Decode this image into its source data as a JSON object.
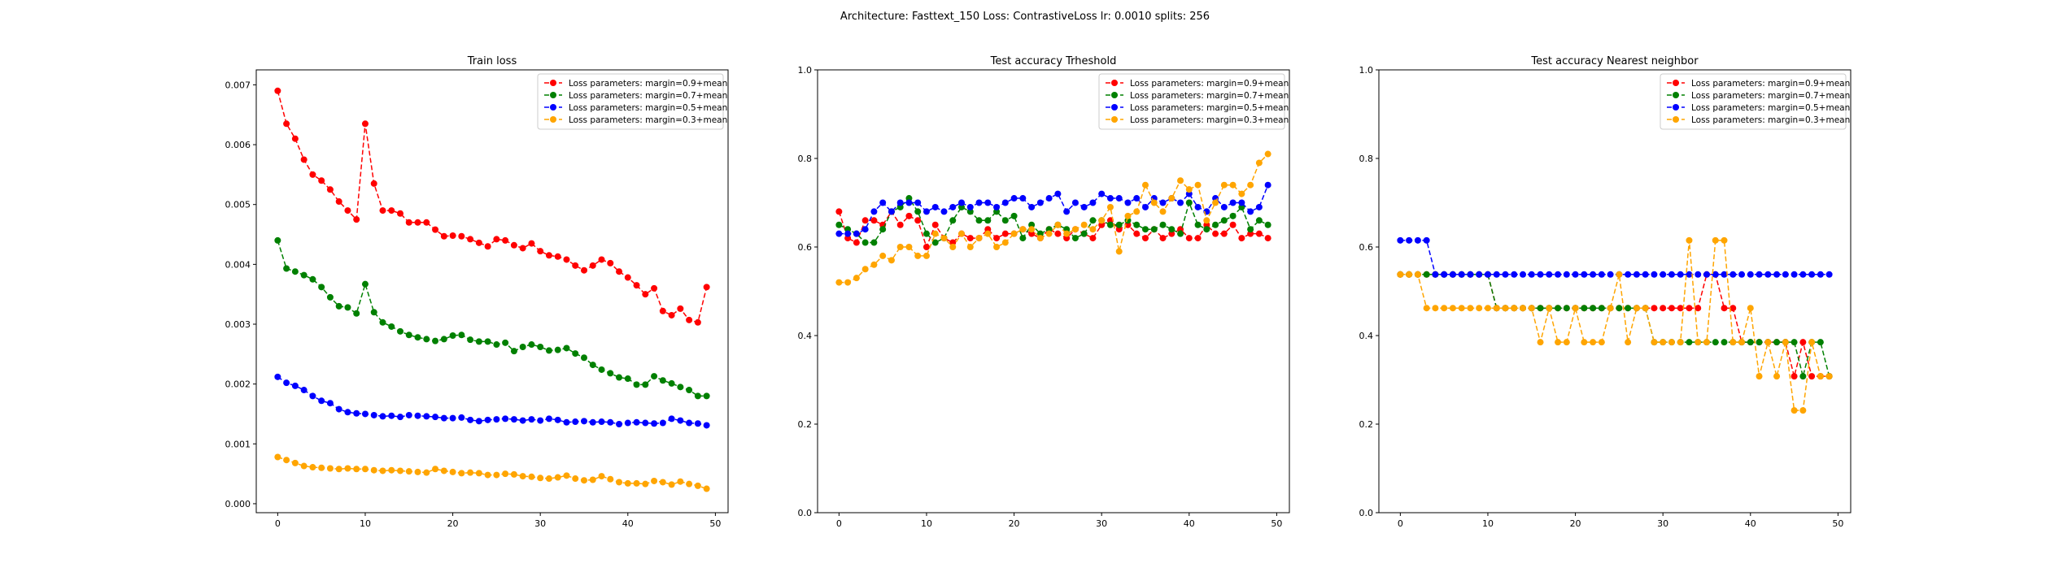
{
  "figure": {
    "suptitle": "Architecture: Fasttext_150 Loss: ContrastiveLoss lr: 0.0010 splits: 256"
  },
  "colors": {
    "margin_0_9": "#ff0000",
    "margin_0_7": "#008000",
    "margin_0_5": "#0000ff",
    "margin_0_3": "#ffa500"
  },
  "chart_data": [
    {
      "type": "line",
      "title": "Train loss",
      "xlabel": "",
      "ylabel": "",
      "xlim": [
        -2.45,
        51.45
      ],
      "ylim": [
        -0.00015,
        0.00725
      ],
      "xticks": [
        0,
        10,
        20,
        30,
        40,
        50
      ],
      "xtick_labels": [
        "0",
        "10",
        "20",
        "30",
        "40",
        "50"
      ],
      "yticks": [
        0,
        0.001,
        0.002,
        0.003,
        0.004,
        0.005,
        0.006,
        0.007
      ],
      "ytick_labels": [
        "0.000",
        "0.001",
        "0.002",
        "0.003",
        "0.004",
        "0.005",
        "0.006",
        "0.007"
      ],
      "legend_position": "top-right",
      "line_style": "dashed",
      "marker": "circle",
      "x": [
        0,
        1,
        2,
        3,
        4,
        5,
        6,
        7,
        8,
        9,
        10,
        11,
        12,
        13,
        14,
        15,
        16,
        17,
        18,
        19,
        20,
        21,
        22,
        23,
        24,
        25,
        26,
        27,
        28,
        29,
        30,
        31,
        32,
        33,
        34,
        35,
        36,
        37,
        38,
        39,
        40,
        41,
        42,
        43,
        44,
        45,
        46,
        47,
        48,
        49
      ],
      "series": [
        {
          "name": "Loss parameters: margin=0.9+mean",
          "color": "#ff0000",
          "values": [
            0.0069,
            0.00635,
            0.0061,
            0.00575,
            0.0055,
            0.0054,
            0.00525,
            0.00505,
            0.0049,
            0.00475,
            0.00635,
            0.00535,
            0.0049,
            0.0049,
            0.00485,
            0.0047,
            0.0047,
            0.0047,
            0.00458,
            0.00447,
            0.00448,
            0.00447,
            0.00442,
            0.00436,
            0.0043,
            0.00442,
            0.0044,
            0.00432,
            0.00427,
            0.00435,
            0.00422,
            0.00415,
            0.00413,
            0.00408,
            0.00398,
            0.0039,
            0.00398,
            0.00408,
            0.00402,
            0.00388,
            0.00378,
            0.00365,
            0.0035,
            0.0036,
            0.00322,
            0.00315,
            0.00326,
            0.00307,
            0.00303,
            0.00362
          ]
        },
        {
          "name": "Loss parameters: margin=0.7+mean",
          "color": "#008000",
          "values": [
            0.0044,
            0.00393,
            0.00388,
            0.00382,
            0.00375,
            0.00362,
            0.00345,
            0.0033,
            0.00328,
            0.00318,
            0.00367,
            0.0032,
            0.00303,
            0.00296,
            0.00288,
            0.00282,
            0.00278,
            0.00275,
            0.00272,
            0.00275,
            0.00281,
            0.00282,
            0.00274,
            0.00271,
            0.00271,
            0.00266,
            0.00269,
            0.00255,
            0.00262,
            0.00266,
            0.00262,
            0.00256,
            0.00257,
            0.0026,
            0.00251,
            0.00244,
            0.00232,
            0.00224,
            0.00218,
            0.00211,
            0.00209,
            0.00199,
            0.00199,
            0.00213,
            0.00206,
            0.00201,
            0.00195,
            0.0019,
            0.0018,
            0.0018
          ]
        },
        {
          "name": "Loss parameters: margin=0.5+mean",
          "color": "#0000ff",
          "values": [
            0.00212,
            0.00202,
            0.00197,
            0.0019,
            0.0018,
            0.00172,
            0.00168,
            0.00158,
            0.00153,
            0.00151,
            0.0015,
            0.00148,
            0.00146,
            0.00147,
            0.00145,
            0.00148,
            0.00147,
            0.00146,
            0.00145,
            0.00143,
            0.00143,
            0.00144,
            0.0014,
            0.00138,
            0.0014,
            0.00141,
            0.00142,
            0.00141,
            0.00139,
            0.00141,
            0.00139,
            0.00142,
            0.0014,
            0.00136,
            0.00137,
            0.00138,
            0.00136,
            0.00137,
            0.00136,
            0.00133,
            0.00135,
            0.00136,
            0.00135,
            0.00134,
            0.00135,
            0.00142,
            0.00139,
            0.00135,
            0.00134,
            0.00131
          ]
        },
        {
          "name": "Loss parameters: margin=0.3+mean",
          "color": "#ffa500",
          "values": [
            0.00078,
            0.00073,
            0.00068,
            0.00063,
            0.00061,
            0.0006,
            0.00059,
            0.00058,
            0.00059,
            0.00058,
            0.00058,
            0.00056,
            0.00055,
            0.00056,
            0.00055,
            0.00054,
            0.00053,
            0.00052,
            0.00058,
            0.00055,
            0.00053,
            0.00051,
            0.00052,
            0.00051,
            0.00048,
            0.00048,
            0.0005,
            0.00049,
            0.00046,
            0.00045,
            0.00043,
            0.00042,
            0.00044,
            0.00047,
            0.00042,
            0.00039,
            0.0004,
            0.00046,
            0.00041,
            0.00036,
            0.00034,
            0.00034,
            0.00033,
            0.00038,
            0.00036,
            0.00032,
            0.00037,
            0.00033,
            0.0003,
            0.00025
          ]
        }
      ]
    },
    {
      "type": "line",
      "title": "Test accuracy Trheshold",
      "xlabel": "",
      "ylabel": "",
      "xlim": [
        -2.45,
        51.45
      ],
      "ylim": [
        0,
        1
      ],
      "xticks": [
        0,
        10,
        20,
        30,
        40,
        50
      ],
      "xtick_labels": [
        "0",
        "10",
        "20",
        "30",
        "40",
        "50"
      ],
      "yticks": [
        0,
        0.2,
        0.4,
        0.6,
        0.8,
        1.0
      ],
      "ytick_labels": [
        "0.0",
        "0.2",
        "0.4",
        "0.6",
        "0.8",
        "1.0"
      ],
      "legend_position": "top-right",
      "line_style": "dashed",
      "marker": "circle",
      "x": [
        0,
        1,
        2,
        3,
        4,
        5,
        6,
        7,
        8,
        9,
        10,
        11,
        12,
        13,
        14,
        15,
        16,
        17,
        18,
        19,
        20,
        21,
        22,
        23,
        24,
        25,
        26,
        27,
        28,
        29,
        30,
        31,
        32,
        33,
        34,
        35,
        36,
        37,
        38,
        39,
        40,
        41,
        42,
        43,
        44,
        45,
        46,
        47,
        48,
        49
      ],
      "series": [
        {
          "name": "Loss parameters: margin=0.9+mean",
          "color": "#ff0000",
          "values": [
            0.68,
            0.62,
            0.61,
            0.66,
            0.66,
            0.65,
            0.68,
            0.65,
            0.67,
            0.66,
            0.6,
            0.65,
            0.62,
            0.61,
            0.63,
            0.62,
            0.62,
            0.64,
            0.62,
            0.63,
            0.63,
            0.64,
            0.63,
            0.62,
            0.64,
            0.63,
            0.62,
            0.64,
            0.63,
            0.62,
            0.65,
            0.66,
            0.64,
            0.65,
            0.63,
            0.62,
            0.64,
            0.62,
            0.63,
            0.64,
            0.62,
            0.62,
            0.65,
            0.63,
            0.63,
            0.65,
            0.62,
            0.63,
            0.63,
            0.62
          ]
        },
        {
          "name": "Loss parameters: margin=0.7+mean",
          "color": "#008000",
          "values": [
            0.65,
            0.64,
            0.63,
            0.61,
            0.61,
            0.64,
            0.68,
            0.69,
            0.71,
            0.68,
            0.63,
            0.61,
            0.62,
            0.66,
            0.69,
            0.68,
            0.66,
            0.66,
            0.68,
            0.66,
            0.67,
            0.62,
            0.65,
            0.63,
            0.64,
            0.65,
            0.64,
            0.62,
            0.63,
            0.66,
            0.66,
            0.65,
            0.65,
            0.66,
            0.65,
            0.64,
            0.64,
            0.65,
            0.64,
            0.63,
            0.7,
            0.65,
            0.64,
            0.65,
            0.66,
            0.67,
            0.69,
            0.64,
            0.66,
            0.65
          ]
        },
        {
          "name": "Loss parameters: margin=0.5+mean",
          "color": "#0000ff",
          "values": [
            0.63,
            0.63,
            0.63,
            0.64,
            0.68,
            0.7,
            0.68,
            0.7,
            0.7,
            0.7,
            0.68,
            0.69,
            0.68,
            0.69,
            0.7,
            0.69,
            0.7,
            0.7,
            0.69,
            0.7,
            0.71,
            0.71,
            0.69,
            0.7,
            0.71,
            0.72,
            0.68,
            0.7,
            0.69,
            0.7,
            0.72,
            0.71,
            0.71,
            0.7,
            0.71,
            0.69,
            0.71,
            0.7,
            0.71,
            0.7,
            0.72,
            0.69,
            0.68,
            0.71,
            0.69,
            0.7,
            0.7,
            0.68,
            0.69,
            0.74
          ]
        },
        {
          "name": "Loss parameters: margin=0.3+mean",
          "color": "#ffa500",
          "values": [
            0.52,
            0.52,
            0.53,
            0.55,
            0.56,
            0.58,
            0.57,
            0.6,
            0.6,
            0.58,
            0.58,
            0.63,
            0.62,
            0.6,
            0.63,
            0.6,
            0.62,
            0.63,
            0.6,
            0.61,
            0.63,
            0.64,
            0.64,
            0.62,
            0.63,
            0.65,
            0.63,
            0.64,
            0.65,
            0.64,
            0.66,
            0.69,
            0.59,
            0.67,
            0.68,
            0.74,
            0.7,
            0.68,
            0.71,
            0.75,
            0.73,
            0.74,
            0.66,
            0.7,
            0.74,
            0.74,
            0.72,
            0.74,
            0.79,
            0.81
          ]
        }
      ]
    },
    {
      "type": "line",
      "title": "Test accuracy Nearest neighbor",
      "xlabel": "",
      "ylabel": "",
      "xlim": [
        -2.45,
        51.45
      ],
      "ylim": [
        0,
        1
      ],
      "xticks": [
        0,
        10,
        20,
        30,
        40,
        50
      ],
      "xtick_labels": [
        "0",
        "10",
        "20",
        "30",
        "40",
        "50"
      ],
      "yticks": [
        0,
        0.2,
        0.4,
        0.6,
        0.8,
        1.0
      ],
      "ytick_labels": [
        "0.0",
        "0.2",
        "0.4",
        "0.6",
        "0.8",
        "1.0"
      ],
      "legend_position": "top-right",
      "line_style": "dashed",
      "marker": "circle",
      "x": [
        0,
        1,
        2,
        3,
        4,
        5,
        6,
        7,
        8,
        9,
        10,
        11,
        12,
        13,
        14,
        15,
        16,
        17,
        18,
        19,
        20,
        21,
        22,
        23,
        24,
        25,
        26,
        27,
        28,
        29,
        30,
        31,
        32,
        33,
        34,
        35,
        36,
        37,
        38,
        39,
        40,
        41,
        42,
        43,
        44,
        45,
        46,
        47,
        48,
        49
      ],
      "series": [
        {
          "name": "Loss parameters: margin=0.9+mean",
          "color": "#ff0000",
          "values": [
            0.538,
            0.538,
            0.538,
            0.538,
            0.538,
            0.538,
            0.538,
            0.538,
            0.538,
            0.538,
            0.538,
            0.462,
            0.462,
            0.462,
            0.462,
            0.462,
            0.462,
            0.462,
            0.462,
            0.462,
            0.462,
            0.462,
            0.462,
            0.462,
            0.462,
            0.462,
            0.462,
            0.462,
            0.462,
            0.462,
            0.462,
            0.462,
            0.462,
            0.462,
            0.462,
            0.538,
            0.538,
            0.462,
            0.462,
            0.385,
            0.385,
            0.385,
            0.385,
            0.385,
            0.385,
            0.308,
            0.385,
            0.308,
            0.308,
            0.308
          ]
        },
        {
          "name": "Loss parameters: margin=0.7+mean",
          "color": "#008000",
          "values": [
            0.538,
            0.538,
            0.538,
            0.538,
            0.538,
            0.538,
            0.538,
            0.538,
            0.538,
            0.538,
            0.538,
            0.462,
            0.462,
            0.462,
            0.462,
            0.462,
            0.462,
            0.462,
            0.462,
            0.462,
            0.462,
            0.462,
            0.462,
            0.462,
            0.462,
            0.462,
            0.462,
            0.462,
            0.462,
            0.385,
            0.385,
            0.385,
            0.385,
            0.385,
            0.385,
            0.385,
            0.385,
            0.385,
            0.385,
            0.385,
            0.385,
            0.385,
            0.385,
            0.385,
            0.385,
            0.385,
            0.308,
            0.385,
            0.385,
            0.308
          ]
        },
        {
          "name": "Loss parameters: margin=0.5+mean",
          "color": "#0000ff",
          "values": [
            0.615,
            0.615,
            0.615,
            0.615,
            0.538,
            0.538,
            0.538,
            0.538,
            0.538,
            0.538,
            0.538,
            0.538,
            0.538,
            0.538,
            0.538,
            0.538,
            0.538,
            0.538,
            0.538,
            0.538,
            0.538,
            0.538,
            0.538,
            0.538,
            0.538,
            0.538,
            0.538,
            0.538,
            0.538,
            0.538,
            0.538,
            0.538,
            0.538,
            0.538,
            0.538,
            0.538,
            0.538,
            0.538,
            0.538,
            0.538,
            0.538,
            0.538,
            0.538,
            0.538,
            0.538,
            0.538,
            0.538,
            0.538,
            0.538,
            0.538
          ]
        },
        {
          "name": "Loss parameters: margin=0.3+mean",
          "color": "#ffa500",
          "values": [
            0.538,
            0.538,
            0.538,
            0.462,
            0.462,
            0.462,
            0.462,
            0.462,
            0.462,
            0.462,
            0.462,
            0.462,
            0.462,
            0.462,
            0.462,
            0.462,
            0.385,
            0.462,
            0.385,
            0.385,
            0.462,
            0.385,
            0.385,
            0.385,
            0.462,
            0.538,
            0.385,
            0.462,
            0.462,
            0.385,
            0.385,
            0.385,
            0.385,
            0.615,
            0.385,
            0.385,
            0.615,
            0.615,
            0.385,
            0.385,
            0.462,
            0.308,
            0.385,
            0.308,
            0.385,
            0.231,
            0.231,
            0.385,
            0.308,
            0.308
          ]
        }
      ]
    }
  ]
}
